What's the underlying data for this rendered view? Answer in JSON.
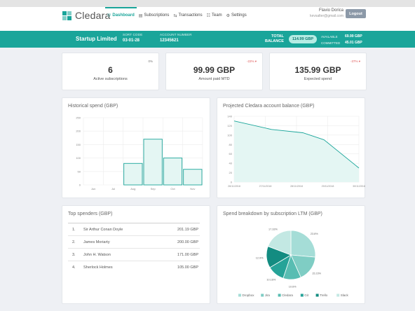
{
  "app": {
    "name": "Cledara"
  },
  "nav": [
    {
      "label": "Dashboard",
      "icon": "♡",
      "active": true
    },
    {
      "label": "Subscriptions",
      "icon": "▤"
    },
    {
      "label": "Transactions",
      "icon": "⇆"
    },
    {
      "label": "Team",
      "icon": "☷"
    },
    {
      "label": "Settings",
      "icon": "⚙"
    }
  ],
  "user": {
    "name": "Flavio Dorica",
    "email": "kevsalter@gmail.com",
    "logout_label": "Logout"
  },
  "account": {
    "company": "Startup Limited",
    "sort_code_label": "SORT CODE",
    "sort_code": "03-01-28",
    "account_number_label": "ACCOUNT NUMBER",
    "account_number": "12345621",
    "total_balance_label_1": "TOTAL",
    "total_balance_label_2": "BALANCE",
    "total_balance": "114.99 GBP",
    "available_label": "AVAILABLE",
    "available": "69.99 GBP",
    "committed_label": "COMMITTED",
    "committed": "45.01 GBP"
  },
  "stats": [
    {
      "value": "6",
      "label": "Active subscriptions",
      "badge": "0%",
      "badge_color": "#777777"
    },
    {
      "value": "99.99 GBP",
      "label": "Amount paid MTD",
      "badge": "-22% ▾",
      "badge_color": "#e05a5a"
    },
    {
      "value": "135.99 GBP",
      "label": "Expected spend",
      "badge": "-37% ▾",
      "badge_color": "#e05a5a"
    }
  ],
  "historical": {
    "title": "Historical spend (GBP)"
  },
  "projected": {
    "title": "Projected Cledara account balance (GBP)"
  },
  "top_spenders": {
    "title": "Top spenders (GBP)",
    "rows": [
      {
        "rank": "1.",
        "name": "Sir Arthur Conan Doyle",
        "amount": "201.19 GBP"
      },
      {
        "rank": "2.",
        "name": "James Moriarty",
        "amount": "200.00 GBP"
      },
      {
        "rank": "3.",
        "name": "John H. Watson",
        "amount": "171.00 GBP"
      },
      {
        "rank": "4.",
        "name": "Sherlock Holmes",
        "amount": "105.00 GBP"
      }
    ]
  },
  "breakdown": {
    "title": "Spend breakdown by subscription LTM (GBP)"
  },
  "chart_data": [
    {
      "type": "bar",
      "title": "Historical spend (GBP)",
      "categories": [
        "Jun",
        "Jul",
        "Aug",
        "Sep",
        "Oct",
        "Nov"
      ],
      "values": [
        0,
        0,
        80,
        170,
        100,
        58
      ],
      "yticks": [
        0,
        50,
        100,
        150,
        200,
        250
      ],
      "ylim": [
        0,
        250
      ],
      "color": "#1aa59a"
    },
    {
      "type": "area",
      "title": "Projected Cledara account balance (GBP)",
      "x": [
        0,
        0.3,
        0.55,
        0.72,
        1.0
      ],
      "values": [
        130,
        112,
        105,
        90,
        30
      ],
      "xtick_labels": [
        "26/11/2018",
        "27/11/2018",
        "28/11/2018",
        "29/11/2018",
        "30/11/2018"
      ],
      "yticks": [
        0,
        20,
        40,
        60,
        80,
        100,
        120,
        140
      ],
      "ylim": [
        0,
        140
      ],
      "color": "#1aa59a"
    },
    {
      "type": "pie",
      "title": "Spend breakdown by subscription LTM (GBP)",
      "labels": [
        "Dropbox",
        "Jira",
        "Cledara",
        "Git",
        "Trello",
        "Slack"
      ],
      "values": [
        23.8,
        15.23,
        10.6,
        10.16,
        12.9,
        17.33
      ],
      "value_labels": [
        "23.8%",
        "15.23%",
        "10.6%",
        "10.16%",
        "12.9%",
        "17.33%"
      ],
      "colors": [
        "#a5ddd7",
        "#7fcdc4",
        "#58bdb2",
        "#26a398",
        "#138c81",
        "#c3e8e3"
      ]
    }
  ]
}
